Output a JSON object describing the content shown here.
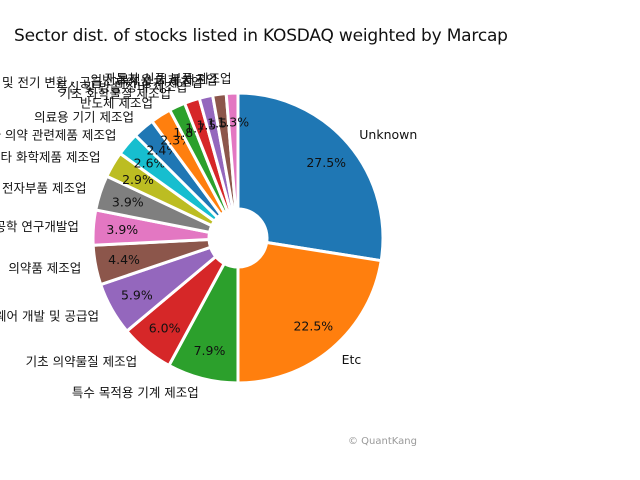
{
  "chart_data": {
    "type": "pie",
    "title": "Sector dist. of stocks listed in KOSDAQ weighted by Marcap",
    "donut": true,
    "start_angle_deg": 90,
    "counterclockwise": false,
    "slices": [
      {
        "label": "Unknown",
        "value": 27.5,
        "pct_label": "27.5%",
        "color": "#1f77b4"
      },
      {
        "label": "Etc",
        "value": 22.5,
        "pct_label": "22.5%",
        "color": "#ff7f0e"
      },
      {
        "label": "특수 목적용 기계 제조업",
        "value": 7.9,
        "pct_label": "7.9%",
        "color": "#2ca02c"
      },
      {
        "label": "기초 의약물질 제조업",
        "value": 6.0,
        "pct_label": "6.0%",
        "color": "#d62728"
      },
      {
        "label": "소프트웨어 개발 및 공급업",
        "value": 5.9,
        "pct_label": "5.9%",
        "color": "#9467bd"
      },
      {
        "label": "의약품 제조업",
        "value": 4.4,
        "pct_label": "4.4%",
        "color": "#8c564b"
      },
      {
        "label": "자연과학 및 공학 연구개발업",
        "value": 3.9,
        "pct_label": "3.9%",
        "color": "#e377c2"
      },
      {
        "label": "전자부품 제조업",
        "value": 3.9,
        "pct_label": "3.9%",
        "color": "#7f7f7f"
      },
      {
        "label": "기타 화학제품 제조업",
        "value": 2.9,
        "pct_label": "2.9%",
        "color": "#bcbd22"
      },
      {
        "label": "의료용품 및 기타 의약 관련제품 제조업",
        "value": 2.6,
        "pct_label": "2.6%",
        "color": "#17becf"
      },
      {
        "label": "의료용 기기 제조업",
        "value": 2.4,
        "pct_label": "2.4%",
        "color": "#1f77b4"
      },
      {
        "label": "반도체 제조업",
        "value": 2.3,
        "pct_label": "2.3%",
        "color": "#ff7f0e"
      },
      {
        "label": "기초 화학물질 제조업",
        "value": 1.8,
        "pct_label": "1.8%",
        "color": "#2ca02c"
      },
      {
        "label": "통신 및 방송 장비 제조업",
        "value": 1.7,
        "pct_label": "1.7%",
        "color": "#d62728"
      },
      {
        "label": "전동기, 발전기 및 전기 변환 · 공급 · 제어 장치 제조업",
        "value": 1.5,
        "pct_label": "1.5%",
        "color": "#9467bd"
      },
      {
        "label": "일반 목적용 기계 제조업",
        "value": 1.5,
        "pct_label": "1.5%",
        "color": "#8c564b"
      },
      {
        "label": "자동차 신품 부품 제조업",
        "value": 1.3,
        "pct_label": "1.3%",
        "color": "#e377c2"
      }
    ]
  },
  "watermark": "© QuantKang"
}
